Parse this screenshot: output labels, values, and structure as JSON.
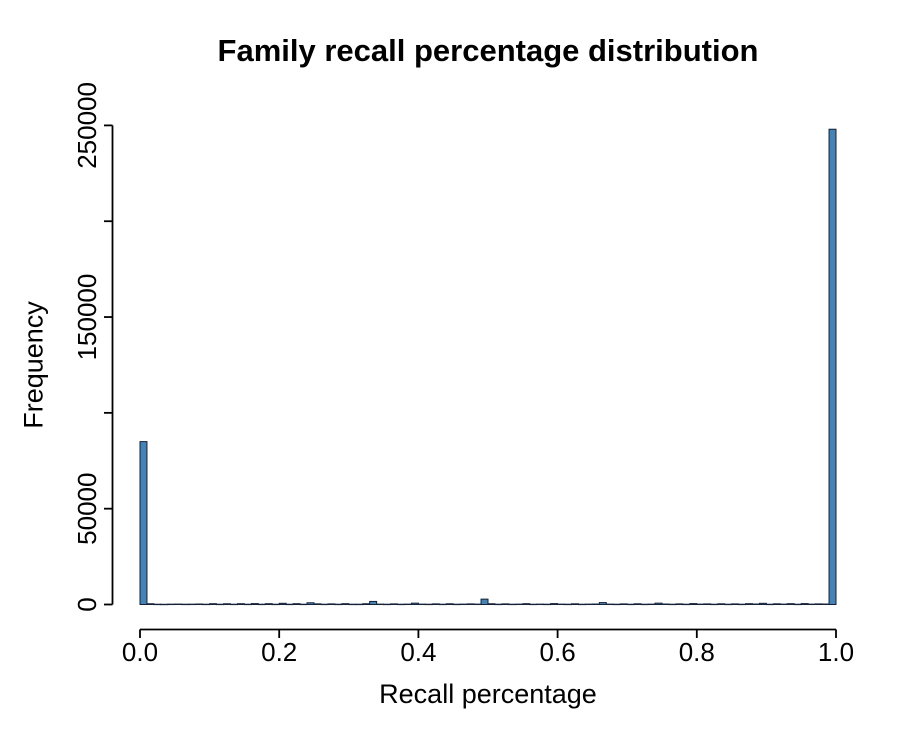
{
  "chart_data": {
    "type": "bar",
    "subtype": "histogram",
    "title": "Family recall percentage distribution",
    "xlabel": "Recall percentage",
    "ylabel": "Frequency",
    "xlim": [
      0.0,
      1.0
    ],
    "ylim": [
      0,
      250000
    ],
    "grid": false,
    "legend": false,
    "x_tick_values": [
      0.0,
      0.2,
      0.4,
      0.6,
      0.8,
      1.0
    ],
    "x_tick_labels": [
      "0.0",
      "0.2",
      "0.4",
      "0.6",
      "0.8",
      "1.0"
    ],
    "y_tick_values": [
      0,
      50000,
      100000,
      150000,
      200000,
      250000
    ],
    "y_tick_labels": [
      "0",
      "50000",
      "",
      "150000",
      "",
      "250000"
    ],
    "bin_width": 0.01,
    "bin_start": 0.0,
    "frequencies": [
      85000,
      400,
      150,
      120,
      180,
      220,
      150,
      180,
      260,
      150,
      420,
      150,
      380,
      150,
      420,
      150,
      470,
      150,
      420,
      150,
      620,
      150,
      430,
      150,
      900,
      350,
      150,
      320,
      150,
      430,
      150,
      150,
      400,
      1600,
      200,
      150,
      320,
      150,
      200,
      700,
      200,
      150,
      330,
      150,
      380,
      150,
      200,
      320,
      200,
      2800,
      400,
      150,
      330,
      150,
      200,
      430,
      150,
      200,
      150,
      470,
      200,
      150,
      370,
      150,
      200,
      250,
      1000,
      200,
      150,
      320,
      150,
      370,
      150,
      200,
      700,
      250,
      150,
      320,
      150,
      470,
      200,
      320,
      150,
      370,
      150,
      320,
      150,
      430,
      250,
      620,
      150,
      370,
      200,
      430,
      150,
      470,
      200,
      320,
      250,
      248000
    ],
    "notable_bins": [
      {
        "x": 0.0,
        "freq": 85000
      },
      {
        "x": 0.25,
        "freq": 900
      },
      {
        "x": 0.33,
        "freq": 1600
      },
      {
        "x": 0.5,
        "freq": 2800
      },
      {
        "x": 0.67,
        "freq": 1000
      },
      {
        "x": 1.0,
        "freq": 248000
      }
    ],
    "bar_fill": "#4682B4",
    "bar_border": "#142136",
    "axis_color": "#000000"
  }
}
